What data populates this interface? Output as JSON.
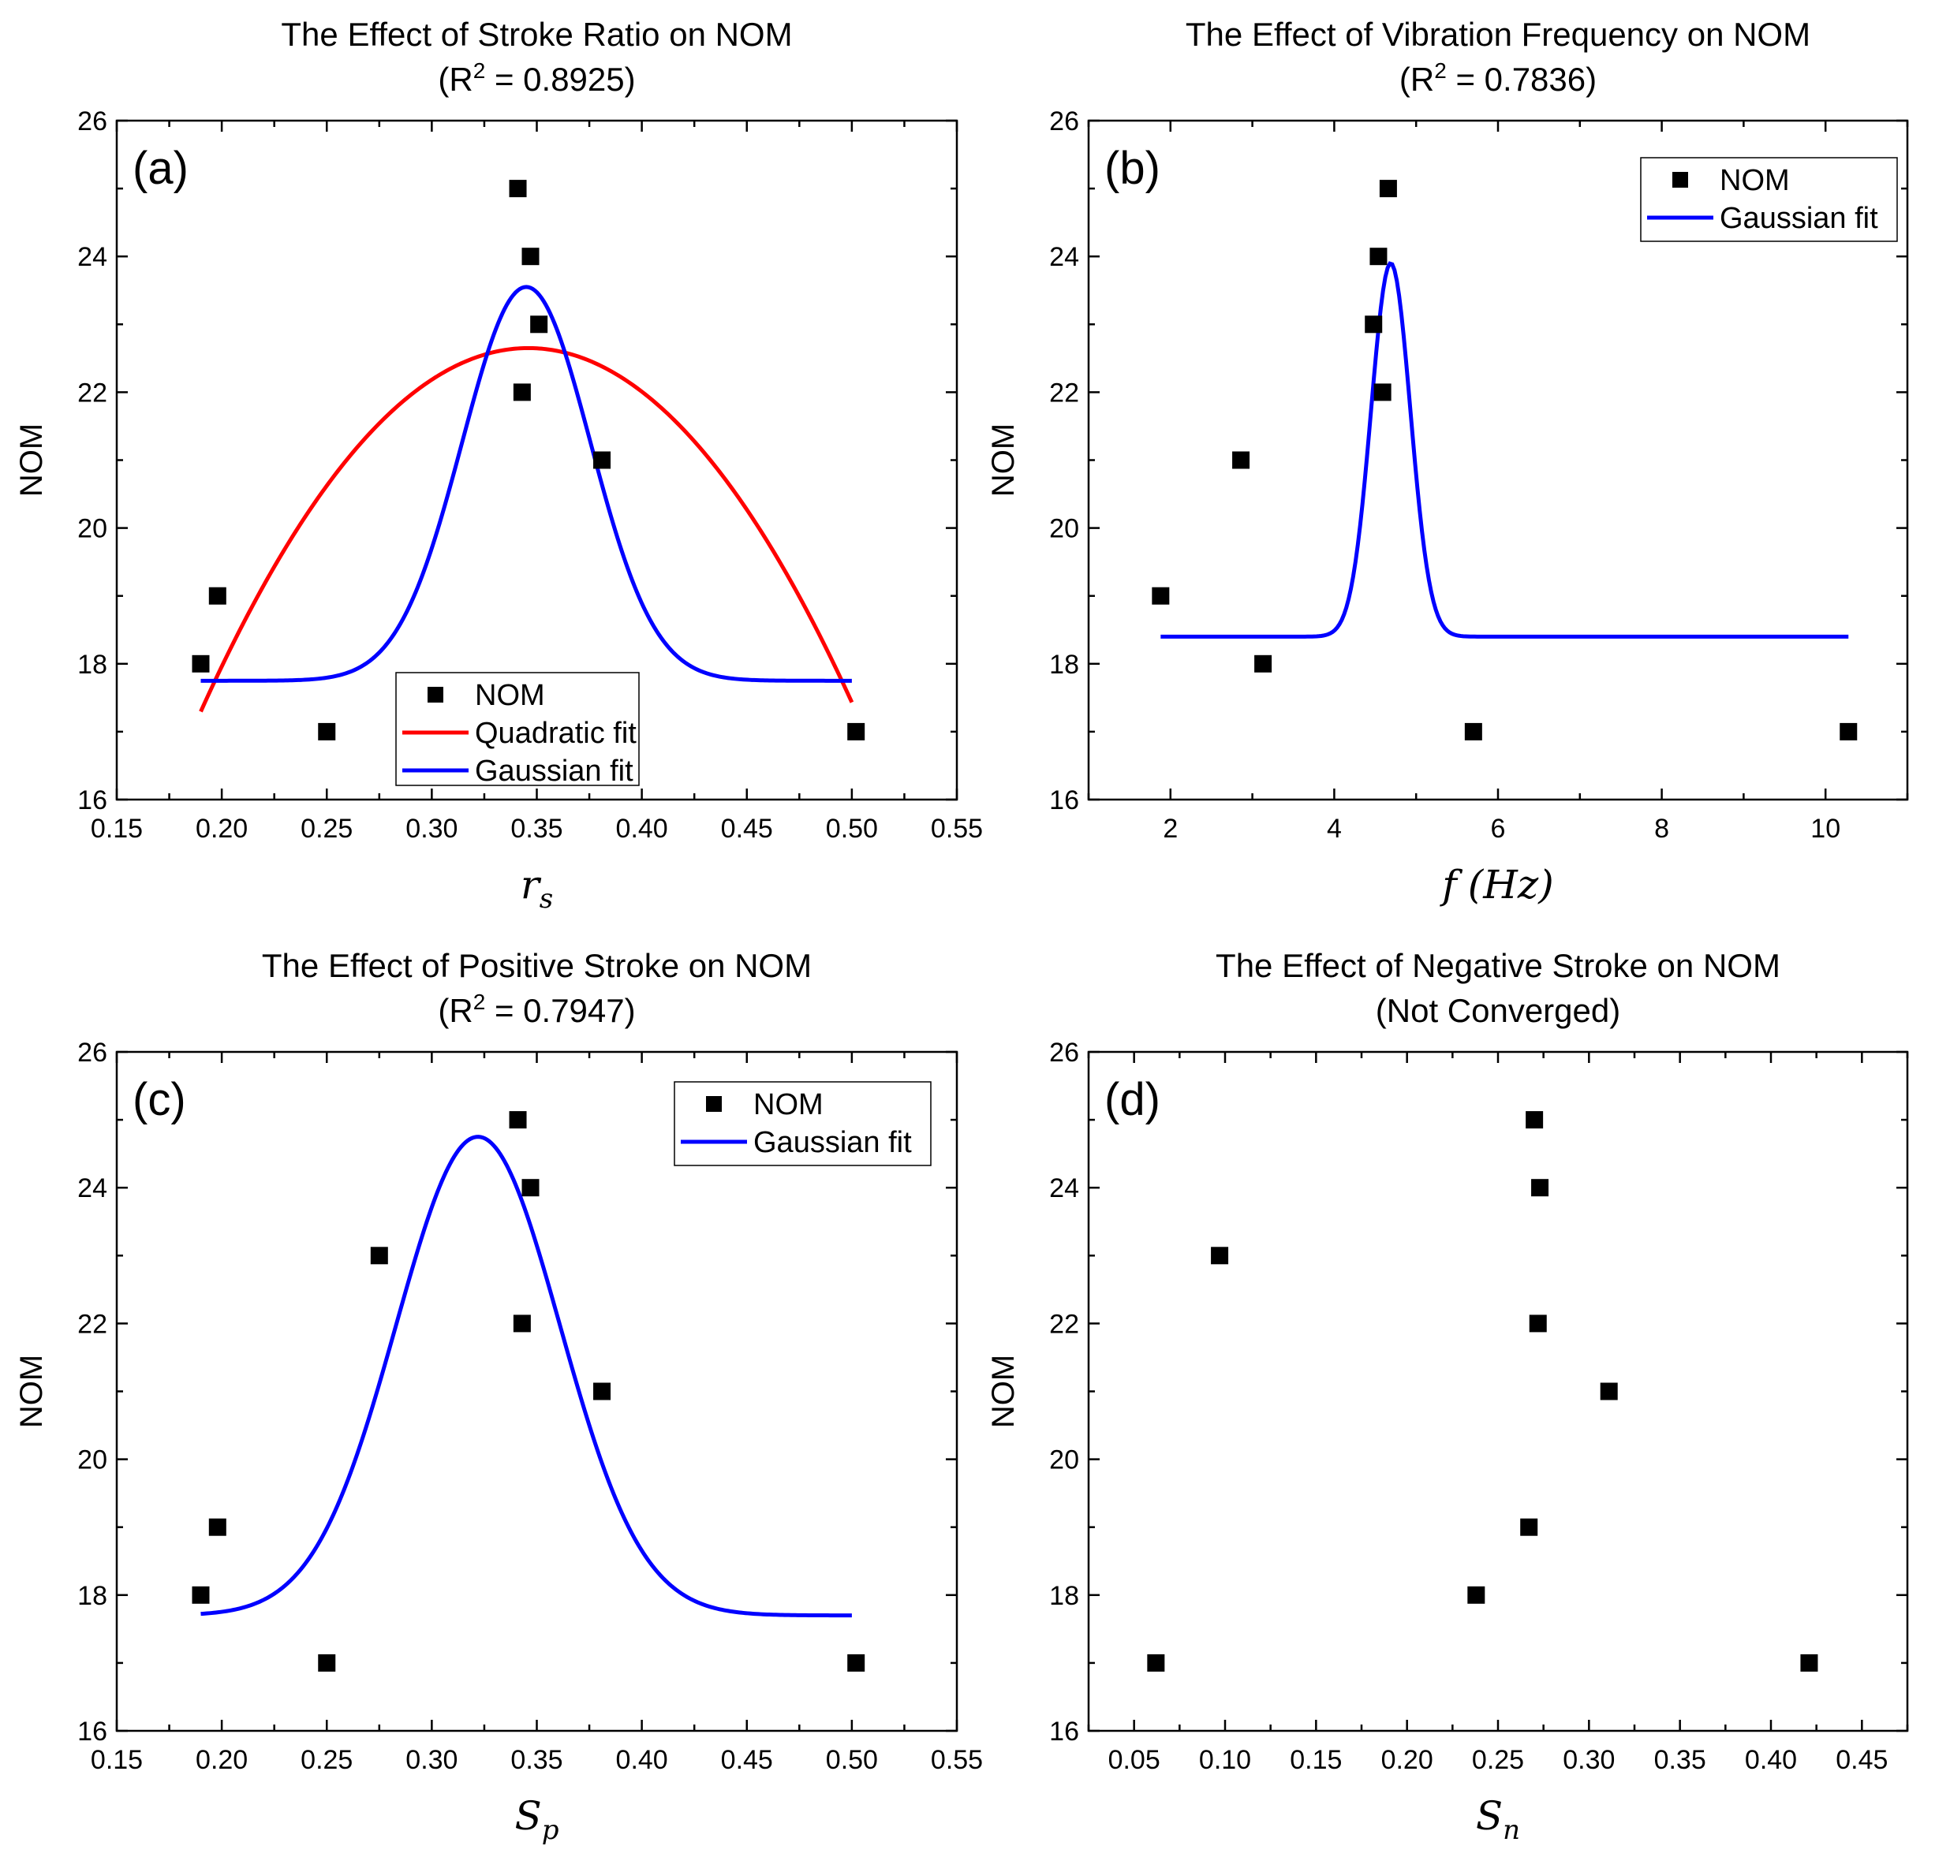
{
  "chart_data": [
    {
      "type": "scatter",
      "panel_label": "(a)",
      "title_line1": "The Effect of Stroke Ratio on NOM",
      "title_line2_prefix": "(R",
      "title_line2_sup": "2",
      "title_line2_suffix": " = 0.8925)",
      "xlabel": "r",
      "xlabel_sub": "s",
      "xlabel_paren": "",
      "ylabel": "NOM",
      "xlim": [
        0.15,
        0.55
      ],
      "ylim": [
        16,
        26
      ],
      "xticks": [
        0.15,
        0.2,
        0.25,
        0.3,
        0.35,
        0.4,
        0.45,
        0.5,
        0.55
      ],
      "xtick_labels": [
        "0.15",
        "0.20",
        "0.25",
        "0.30",
        "0.35",
        "0.40",
        "0.45",
        "0.50",
        "0.55"
      ],
      "xminor": [
        0.175,
        0.225,
        0.275,
        0.325,
        0.375,
        0.425,
        0.475,
        0.525
      ],
      "yticks": [
        16,
        18,
        20,
        22,
        24,
        26
      ],
      "ytick_labels": [
        "16",
        "18",
        "20",
        "22",
        "24",
        "26"
      ],
      "yminor": [
        17,
        19,
        21,
        23,
        25
      ],
      "points": {
        "name": "NOM",
        "x": [
          0.19,
          0.198,
          0.25,
          0.341,
          0.347,
          0.351,
          0.343,
          0.381,
          0.502
        ],
        "y": [
          18,
          19,
          17,
          25,
          24,
          23,
          22,
          21,
          17
        ]
      },
      "fits": [
        {
          "name": "Quadratic fit",
          "color": "#ff0000",
          "kind": "quadratic",
          "x_range": [
            0.19,
            0.5
          ],
          "vertex_x": 0.346,
          "peak": 22.65,
          "curvature": -220
        },
        {
          "name": "Gaussian fit",
          "color": "#0000ff",
          "kind": "gaussian",
          "x_range": [
            0.19,
            0.5
          ],
          "baseline": 17.75,
          "amplitude": 5.8,
          "center": 0.345,
          "sigma": 0.0305
        }
      ],
      "legend": {
        "position": "bottom-center",
        "entries": [
          "NOM",
          "Quadratic fit",
          "Gaussian fit"
        ]
      }
    },
    {
      "type": "scatter",
      "panel_label": "(b)",
      "title_line1": "The Effect of Vibration Frequency on NOM",
      "title_line2_prefix": "(R",
      "title_line2_sup": "2",
      "title_line2_suffix": " = 0.7836)",
      "xlabel": "f",
      "xlabel_sub": "",
      "xlabel_paren": "(Hz)",
      "ylabel": "NOM",
      "xlim": [
        1,
        11
      ],
      "ylim": [
        16,
        26
      ],
      "xticks": [
        2,
        4,
        6,
        8,
        10
      ],
      "xtick_labels": [
        "2",
        "4",
        "6",
        "8",
        "10"
      ],
      "xminor": [
        1,
        3,
        5,
        7,
        9,
        11
      ],
      "yticks": [
        16,
        18,
        20,
        22,
        24,
        26
      ],
      "ytick_labels": [
        "16",
        "18",
        "20",
        "22",
        "24",
        "26"
      ],
      "yminor": [
        17,
        19,
        21,
        23,
        25
      ],
      "points": {
        "name": "NOM",
        "x": [
          1.88,
          2.86,
          3.13,
          4.48,
          4.54,
          4.59,
          4.66,
          5.7,
          10.28
        ],
        "y": [
          19,
          21,
          18,
          23,
          24,
          22,
          25,
          17,
          17
        ]
      },
      "fits": [
        {
          "name": "Gaussian fit",
          "color": "#0000ff",
          "kind": "gaussian",
          "x_range": [
            1.88,
            10.28
          ],
          "baseline": 18.4,
          "amplitude": 5.5,
          "center": 4.69,
          "sigma": 0.24
        }
      ],
      "legend": {
        "position": "top-right",
        "entries": [
          "NOM",
          "Gaussian fit"
        ]
      }
    },
    {
      "type": "scatter",
      "panel_label": "(c)",
      "title_line1": "The Effect of Positive Stroke on NOM",
      "title_line2_prefix": "(R",
      "title_line2_sup": "2",
      "title_line2_suffix": " = 0.7947)",
      "xlabel": "S",
      "xlabel_sub": "p",
      "xlabel_paren": "",
      "ylabel": "NOM",
      "xlim": [
        0.15,
        0.55
      ],
      "ylim": [
        16,
        26
      ],
      "xticks": [
        0.15,
        0.2,
        0.25,
        0.3,
        0.35,
        0.4,
        0.45,
        0.5,
        0.55
      ],
      "xtick_labels": [
        "0.15",
        "0.20",
        "0.25",
        "0.30",
        "0.35",
        "0.40",
        "0.45",
        "0.50",
        "0.55"
      ],
      "xminor": [
        0.175,
        0.225,
        0.275,
        0.325,
        0.375,
        0.425,
        0.475,
        0.525
      ],
      "yticks": [
        16,
        18,
        20,
        22,
        24,
        26
      ],
      "ytick_labels": [
        "16",
        "18",
        "20",
        "22",
        "24",
        "26"
      ],
      "yminor": [
        17,
        19,
        21,
        23,
        25
      ],
      "points": {
        "name": "NOM",
        "x": [
          0.19,
          0.198,
          0.25,
          0.275,
          0.341,
          0.347,
          0.343,
          0.381,
          0.502
        ],
        "y": [
          18,
          19,
          17,
          23,
          25,
          24,
          22,
          21,
          17
        ]
      },
      "fits": [
        {
          "name": "Gaussian fit",
          "color": "#0000ff",
          "kind": "gaussian",
          "x_range": [
            0.19,
            0.5
          ],
          "baseline": 17.7,
          "amplitude": 7.05,
          "center": 0.322,
          "sigma": 0.039
        }
      ],
      "legend": {
        "position": "top-right",
        "entries": [
          "NOM",
          "Gaussian fit"
        ]
      }
    },
    {
      "type": "scatter",
      "panel_label": "(d)",
      "title_line1": "The Effect of Negative Stroke on NOM",
      "title_line2_prefix": "(Not Converged)",
      "title_line2_sup": "",
      "title_line2_suffix": "",
      "xlabel": "S",
      "xlabel_sub": "n",
      "xlabel_paren": "",
      "ylabel": "NOM",
      "xlim": [
        0.025,
        0.475
      ],
      "ylim": [
        16,
        26
      ],
      "xticks": [
        0.05,
        0.1,
        0.15,
        0.2,
        0.25,
        0.3,
        0.35,
        0.4,
        0.45
      ],
      "xtick_labels": [
        "0.05",
        "0.10",
        "0.15",
        "0.20",
        "0.25",
        "0.30",
        "0.35",
        "0.40",
        "0.45"
      ],
      "xminor": [
        0.025,
        0.075,
        0.125,
        0.175,
        0.225,
        0.275,
        0.325,
        0.375,
        0.425,
        0.475
      ],
      "yticks": [
        16,
        18,
        20,
        22,
        24,
        26
      ],
      "ytick_labels": [
        "16",
        "18",
        "20",
        "22",
        "24",
        "26"
      ],
      "yminor": [
        17,
        19,
        21,
        23,
        25
      ],
      "points": {
        "name": "NOM",
        "x": [
          0.062,
          0.097,
          0.238,
          0.267,
          0.27,
          0.272,
          0.273,
          0.311,
          0.421
        ],
        "y": [
          17,
          23,
          18,
          19,
          25,
          22,
          24,
          21,
          17
        ]
      },
      "fits": [],
      "legend": null
    }
  ]
}
